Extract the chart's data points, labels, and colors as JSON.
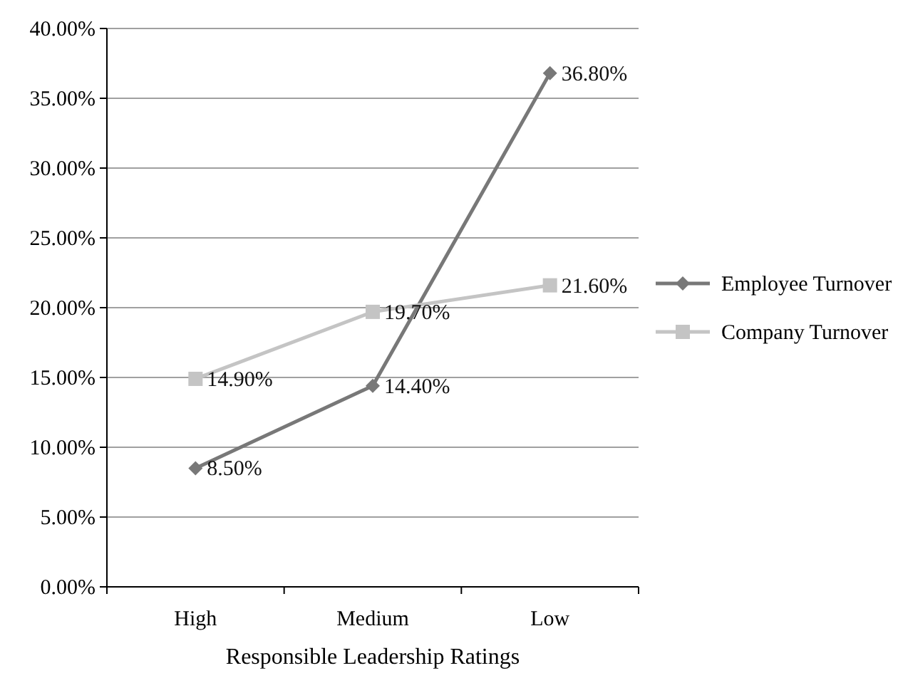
{
  "chart_data": {
    "type": "line",
    "xlabel": "Responsible Leadership Ratings",
    "categories": [
      "High",
      "Medium",
      "Low"
    ],
    "series": [
      {
        "name": "Employee Turnover",
        "color": "#787878",
        "marker": "diamond",
        "values": [
          8.5,
          14.4,
          36.8
        ],
        "value_labels": [
          "8.50%",
          "14.40%",
          "36.80%"
        ]
      },
      {
        "name": "Company Turnover",
        "color": "#c4c4c4",
        "marker": "square",
        "values": [
          14.9,
          19.7,
          21.6
        ],
        "value_labels": [
          "14.90%",
          "19.70%",
          "21.60%"
        ]
      }
    ],
    "ylim": [
      0,
      40
    ],
    "yticks": [
      {
        "value": 0,
        "label": "0.00%"
      },
      {
        "value": 5,
        "label": "5.00%"
      },
      {
        "value": 10,
        "label": "10.00%"
      },
      {
        "value": 15,
        "label": "15.00%"
      },
      {
        "value": 20,
        "label": "20.00%"
      },
      {
        "value": 25,
        "label": "25.00%"
      },
      {
        "value": 30,
        "label": "30.00%"
      },
      {
        "value": 35,
        "label": "35.00%"
      },
      {
        "value": 40,
        "label": "40.00%"
      }
    ],
    "grid": "y",
    "legend": "right",
    "line_style": "solid"
  }
}
